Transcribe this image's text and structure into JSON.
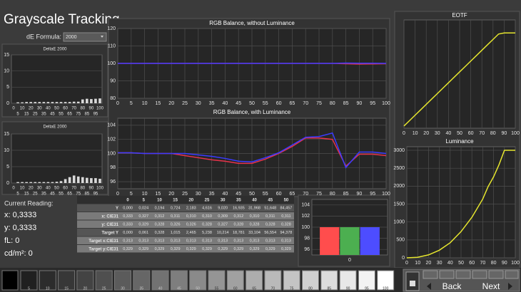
{
  "header": {
    "title": "Grayscale Tracking",
    "de_formula_label": "dE Formula:",
    "de_formula_value": "2000"
  },
  "chart_data": [
    {
      "type": "bar",
      "title": "DeltaE 2000",
      "categories": [
        "0",
        "5",
        "10",
        "15",
        "20",
        "25",
        "30",
        "35",
        "40",
        "45",
        "50",
        "55",
        "60",
        "65",
        "70",
        "75",
        "80",
        "85",
        "90",
        "95",
        "100"
      ],
      "values": [
        0,
        0.3,
        0.3,
        0.4,
        0.4,
        0.4,
        0.4,
        0.4,
        0.4,
        0.4,
        0.4,
        0.4,
        0.4,
        0.4,
        0.5,
        0.5,
        1.2,
        1.4,
        1.3,
        1.4,
        1.5
      ],
      "color": "#d9d9d9",
      "ylim": [
        0,
        15
      ],
      "yticks": [
        0,
        5,
        10,
        15
      ],
      "grid": true
    },
    {
      "type": "bar",
      "title": "DeltaE 2000",
      "categories": [
        "0",
        "5",
        "10",
        "15",
        "20",
        "25",
        "30",
        "35",
        "40",
        "45",
        "50",
        "55",
        "60",
        "65",
        "70",
        "75",
        "80",
        "85",
        "90",
        "95",
        "100"
      ],
      "values": [
        0,
        0.3,
        0.3,
        0.3,
        0.3,
        0.3,
        0.3,
        0.3,
        0.3,
        0.3,
        0.4,
        0.6,
        1.2,
        1.8,
        2.3,
        2.0,
        1.8,
        1.6,
        1.5,
        1.5,
        1.3
      ],
      "color": "#d9d9d9",
      "ylim": [
        0,
        15
      ],
      "yticks": [
        0,
        5,
        10,
        15
      ],
      "grid": true
    },
    {
      "type": "line",
      "title": "RGB Balance, without Luminance",
      "x": [
        0,
        5,
        10,
        15,
        20,
        25,
        30,
        35,
        40,
        45,
        50,
        55,
        60,
        65,
        70,
        75,
        80,
        85,
        90,
        95,
        100
      ],
      "series": [
        {
          "color": "#e8334a",
          "values": [
            100,
            100,
            100,
            100,
            100,
            100,
            100,
            100,
            100,
            100,
            100,
            100,
            100,
            100,
            100,
            100,
            100,
            99.8,
            99.6,
            99.7,
            99.8
          ]
        },
        {
          "color": "#3b3bff",
          "values": [
            100,
            100,
            100,
            100,
            100,
            100,
            100,
            100,
            100,
            100,
            100,
            100,
            100,
            100,
            100,
            100,
            100,
            100.2,
            100.1,
            100.1,
            100
          ]
        }
      ],
      "xlim": [
        0,
        100
      ],
      "xticks": [
        0,
        5,
        10,
        15,
        20,
        25,
        30,
        35,
        40,
        45,
        50,
        55,
        60,
        65,
        70,
        75,
        80,
        85,
        90,
        95,
        100
      ],
      "ylim": [
        80,
        120
      ],
      "yticks": [
        80,
        90,
        100,
        110,
        120
      ],
      "grid": true
    },
    {
      "type": "line",
      "title": "RGB Balance, with Luminance",
      "x": [
        0,
        5,
        10,
        15,
        20,
        25,
        30,
        35,
        40,
        45,
        50,
        55,
        60,
        65,
        70,
        75,
        80,
        85,
        90,
        95,
        100
      ],
      "series": [
        {
          "color": "#e8334a",
          "values": [
            100.1,
            100.1,
            100,
            100,
            100,
            99.7,
            99.4,
            99.1,
            98.9,
            98.6,
            98.6,
            99.2,
            100,
            101,
            102.2,
            102.2,
            102,
            98.2,
            99.9,
            99.9,
            99.7
          ]
        },
        {
          "color": "#3b3bff",
          "values": [
            100.1,
            100.1,
            100,
            100,
            100,
            100,
            99.8,
            99.6,
            99.3,
            98.9,
            98.8,
            99.4,
            100.1,
            101.2,
            102.3,
            102.4,
            102.9,
            98,
            100.2,
            100.2,
            100
          ]
        }
      ],
      "xlim": [
        0,
        100
      ],
      "xticks": [
        0,
        5,
        10,
        15,
        20,
        25,
        30,
        35,
        40,
        45,
        50,
        55,
        60,
        65,
        70,
        75,
        80,
        85,
        90,
        95,
        100
      ],
      "ylim": [
        95,
        105
      ],
      "yticks": [
        96,
        98,
        100,
        102,
        104
      ],
      "grid": true
    },
    {
      "type": "line",
      "title": "EOTF",
      "x": [
        0,
        5,
        10,
        15,
        20,
        25,
        30,
        35,
        40,
        45,
        50,
        55,
        60,
        65,
        70,
        75,
        80,
        85,
        90,
        95,
        100
      ],
      "series": [
        {
          "color": "#e6e62e",
          "values": [
            0.02,
            0.07,
            0.12,
            0.17,
            0.22,
            0.27,
            0.32,
            0.37,
            0.42,
            0.47,
            0.52,
            0.57,
            0.62,
            0.67,
            0.72,
            0.77,
            0.82,
            0.87,
            0.88,
            0.88,
            0.88
          ]
        }
      ],
      "xlim": [
        0,
        100
      ],
      "xticks": [
        0,
        10,
        20,
        30,
        40,
        50,
        60,
        70,
        80,
        90,
        100
      ],
      "ylim": [
        0,
        1
      ],
      "grid": true
    },
    {
      "type": "line",
      "title": "Luminance",
      "x": [
        0,
        10,
        20,
        30,
        40,
        50,
        60,
        70,
        75,
        80,
        85,
        90,
        95,
        100
      ],
      "series": [
        {
          "color": "#e6e62e",
          "values": [
            0,
            15,
            81,
            213,
            421,
            732,
            1130,
            1640,
            1990,
            2260,
            2600,
            3000,
            3000,
            3000
          ]
        }
      ],
      "xlim": [
        0,
        100
      ],
      "xticks": [
        0,
        10,
        20,
        30,
        40,
        50,
        60,
        70,
        80,
        90,
        100
      ],
      "ylim": [
        0,
        3100
      ],
      "yticks": [
        0,
        500,
        1000,
        1500,
        2000,
        2500,
        3000
      ],
      "grid": true
    },
    {
      "type": "bar",
      "categories": [
        "0"
      ],
      "series": [
        {
          "color": "#ff4d4d",
          "values": [
            100
          ]
        },
        {
          "color": "#4caf50",
          "values": [
            100
          ]
        },
        {
          "color": "#4d4dff",
          "values": [
            100
          ]
        }
      ],
      "ylim": [
        95,
        105
      ],
      "yticks": [
        96,
        98,
        100,
        102,
        104
      ],
      "grid": true
    }
  ],
  "current_reading": {
    "title": "Current Reading:",
    "lines": [
      "x: 0,3333",
      "y: 0,3333",
      "fL: 0",
      "cd/m²: 0"
    ]
  },
  "table": {
    "columns": [
      "0",
      "5",
      "10",
      "15",
      "20",
      "25",
      "30",
      "35",
      "40",
      "45",
      "50"
    ],
    "rows": [
      [
        "Y",
        "0,000",
        "0,024",
        "0,194",
        "0,724",
        "2,183",
        "4,616",
        "9,020",
        "16,935",
        "31,968",
        "51,648",
        "84,457"
      ],
      [
        "x: CIE31",
        "0,333",
        "0,327",
        "0,312",
        "0,311",
        "0,310",
        "0,310",
        "0,309",
        "0,312",
        "0,310",
        "0,311",
        "0,311"
      ],
      [
        "y: CIE31",
        "0,333",
        "0,329",
        "0,328",
        "0,326",
        "0,326",
        "0,328",
        "0,327",
        "0,328",
        "0,328",
        "0,328",
        "0,328"
      ],
      [
        "Target Y",
        "0,000",
        "0,061",
        "0,328",
        "1,015",
        "2,465",
        "5,238",
        "10,214",
        "18,781",
        "33,104",
        "56,554",
        "94,378"
      ],
      [
        "Target x:CIE31",
        "0,313",
        "0,313",
        "0,313",
        "0,313",
        "0,313",
        "0,313",
        "0,313",
        "0,313",
        "0,313",
        "0,313",
        "0,313"
      ],
      [
        "Target y:CIE31",
        "0,329",
        "0,329",
        "0,329",
        "0,329",
        "0,329",
        "0,329",
        "0,329",
        "0,329",
        "0,329",
        "0,329",
        "0,329"
      ]
    ]
  },
  "swatches": [
    "5",
    "10",
    "15",
    "20",
    "25",
    "30",
    "35",
    "40",
    "45",
    "50",
    "55",
    "60",
    "65",
    "70",
    "75",
    "80",
    "85",
    "90",
    "95",
    "100"
  ],
  "buttons": {
    "back": "Back",
    "next": "Next"
  }
}
